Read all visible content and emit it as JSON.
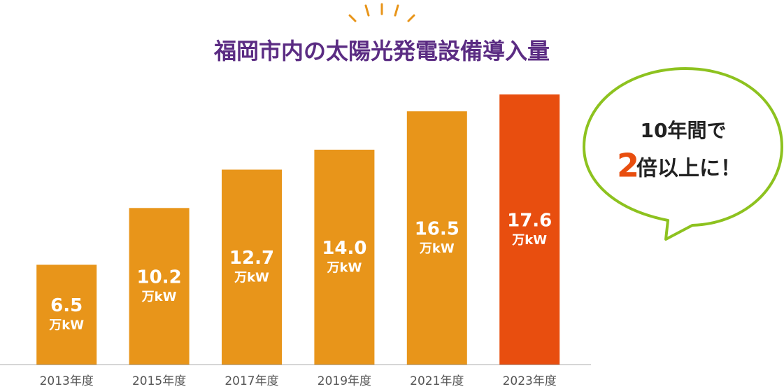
{
  "chart_data": {
    "type": "bar",
    "title": "福岡市内の太陽光発電設備導入量",
    "categories": [
      "2013年度",
      "2015年度",
      "2017年度",
      "2019年度",
      "2021年度",
      "2023年度"
    ],
    "values": [
      6.5,
      10.2,
      12.7,
      14.0,
      16.5,
      17.6
    ],
    "value_labels": [
      "6.5",
      "10.2",
      "12.7",
      "14.0",
      "16.5",
      "17.6"
    ],
    "unit": "万kW",
    "colors": [
      "#e8951a",
      "#e8951a",
      "#e8951a",
      "#e8951a",
      "#e8951a",
      "#e84e0f"
    ],
    "annotation": {
      "line1": "10年間で",
      "emphasis": "2",
      "line2": "倍以上に！"
    }
  }
}
